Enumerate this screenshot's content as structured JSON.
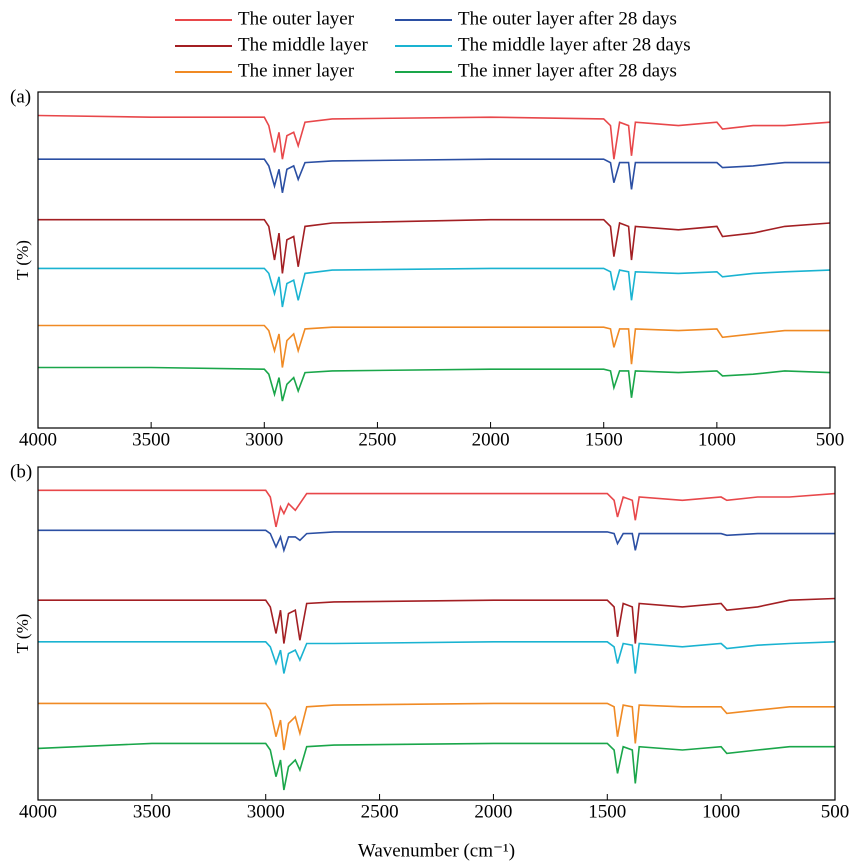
{
  "chart_data": [
    {
      "type": "line",
      "panel_label": "(a)",
      "ylabel": "T (%)",
      "legend": "top",
      "x": [
        4000,
        3500,
        3000,
        2980,
        2955,
        2935,
        2920,
        2900,
        2870,
        2850,
        2820,
        2700,
        2000,
        1500,
        1470,
        1455,
        1430,
        1390,
        1377,
        1360,
        1170,
        1000,
        975,
        840,
        700,
        500
      ],
      "xlim": [
        4000,
        500
      ],
      "xticks": [
        4000,
        3500,
        3000,
        2500,
        2000,
        1500,
        1000,
        500
      ],
      "ylim": [
        0,
        100
      ],
      "series": [
        {
          "name": "The outer layer",
          "color": "#e8474a",
          "values": [
            93,
            92.5,
            92.5,
            90,
            82,
            88,
            80,
            87,
            88,
            84,
            91,
            92,
            92.5,
            92,
            90,
            80,
            91,
            90,
            81,
            91,
            90,
            91,
            89,
            90,
            90,
            91
          ]
        },
        {
          "name": "The outer layer after 28 days",
          "color": "#2b4fa3",
          "values": [
            80,
            80,
            80,
            78,
            72,
            77,
            70,
            77,
            78,
            74,
            79,
            79.5,
            80,
            80,
            79,
            73,
            79,
            79,
            71,
            79,
            79,
            79,
            77.5,
            78,
            79,
            79
          ]
        },
        {
          "name": "The middle layer",
          "color": "#a31f23",
          "values": [
            62,
            62,
            62,
            60,
            50,
            58,
            46,
            56,
            57,
            48,
            60,
            61,
            62,
            62,
            60,
            51,
            61,
            60,
            50,
            60,
            59,
            60,
            57,
            58,
            60,
            61
          ]
        },
        {
          "name": "The middle layer after 28 days",
          "color": "#1ab3d1",
          "values": [
            47.5,
            47.5,
            47.5,
            46,
            40,
            45,
            36,
            43,
            44,
            38,
            46,
            47,
            47.5,
            47.5,
            46.5,
            41,
            47,
            46.5,
            38,
            46.5,
            46,
            46.5,
            45,
            46,
            46.5,
            47
          ]
        },
        {
          "name": "The inner layer",
          "color": "#f08a24",
          "values": [
            30.5,
            30.5,
            30.5,
            29,
            23,
            28,
            18,
            26,
            28,
            23,
            29.5,
            30,
            30,
            30,
            29.5,
            24,
            29.5,
            29.5,
            19,
            29.5,
            29,
            29.5,
            27,
            28,
            29,
            29
          ]
        },
        {
          "name": "The inner layer after 28 days",
          "color": "#1aa64a",
          "values": [
            18,
            18,
            17.5,
            16,
            10,
            15,
            8,
            13,
            15,
            11,
            16.5,
            17,
            17.5,
            17.5,
            17,
            12,
            17,
            17,
            9,
            17,
            16.5,
            17,
            15.5,
            16,
            17,
            16.5
          ]
        }
      ]
    },
    {
      "type": "line",
      "panel_label": "(b)",
      "ylabel": "T (%)",
      "xlabel": "Wavenumber (cm⁻¹)",
      "x": [
        4000,
        3500,
        3000,
        2980,
        2955,
        2935,
        2920,
        2900,
        2870,
        2850,
        2820,
        2700,
        2000,
        1500,
        1470,
        1455,
        1430,
        1390,
        1377,
        1360,
        1170,
        1000,
        975,
        840,
        700,
        500
      ],
      "xlim": [
        4000,
        500
      ],
      "xticks": [
        4000,
        3500,
        3000,
        2500,
        2000,
        1500,
        1000,
        500
      ],
      "ylim": [
        0,
        100
      ],
      "series": [
        {
          "name": "The outer layer",
          "color": "#e8474a",
          "values": [
            93,
            93,
            93,
            91,
            82,
            88,
            86,
            89,
            87,
            89,
            92,
            92,
            92,
            92,
            90,
            85,
            91,
            90,
            84,
            91,
            90,
            91,
            90,
            91,
            91,
            92
          ]
        },
        {
          "name": "The outer layer after 28 days",
          "color": "#2b4fa3",
          "values": [
            81,
            81,
            81,
            80,
            76,
            79,
            75,
            79,
            79,
            78,
            80,
            80.5,
            80.5,
            80.5,
            80,
            77,
            80,
            80,
            75,
            80,
            80,
            80,
            79.5,
            80,
            80,
            80
          ]
        },
        {
          "name": "The middle layer",
          "color": "#a31f23",
          "values": [
            60,
            60,
            60,
            58,
            50,
            57,
            47,
            56,
            57,
            48,
            59,
            59.5,
            60,
            60,
            58,
            49,
            59,
            58,
            47,
            59,
            58,
            59,
            57,
            58,
            60,
            60.5
          ]
        },
        {
          "name": "The middle layer after 28 days",
          "color": "#1ab3d1",
          "values": [
            47.5,
            47.5,
            47.5,
            46,
            41,
            45,
            38,
            44,
            45,
            42,
            47,
            47,
            47.5,
            47.5,
            46,
            41,
            47,
            46.5,
            38,
            47,
            46,
            47,
            45.5,
            46.5,
            47,
            47.5
          ]
        },
        {
          "name": "The inner layer",
          "color": "#f08a24",
          "values": [
            29,
            29,
            29,
            27,
            19,
            24,
            15,
            23,
            25,
            20,
            28,
            28.5,
            29,
            29,
            28,
            19,
            28.5,
            28,
            17,
            28.5,
            28,
            28,
            26,
            27,
            28,
            28
          ]
        },
        {
          "name": "The inner layer after 28 days",
          "color": "#1aa64a",
          "values": [
            15.5,
            17,
            17,
            15,
            7,
            12,
            3,
            10,
            12,
            9,
            16,
            16.5,
            17,
            17,
            15,
            8,
            16,
            15,
            5,
            16,
            15,
            16,
            14,
            15,
            16,
            16
          ]
        }
      ]
    }
  ]
}
